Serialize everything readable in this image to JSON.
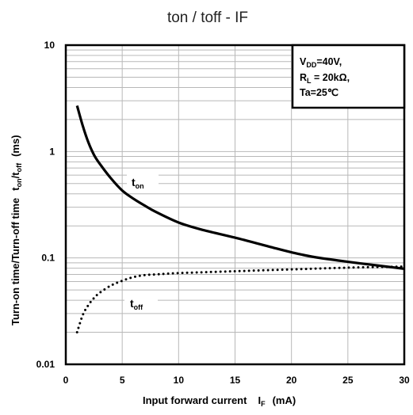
{
  "chart_data": {
    "type": "line",
    "title": "ton / toff - IF",
    "xlabel": {
      "main": "Input forward current",
      "symbol": "I",
      "symbol_sub": "F",
      "unit": "(mA)"
    },
    "ylabel": {
      "main": "Turn-on time/Turn-off time",
      "t1": "t",
      "t1_sub": "on",
      "slash": "/",
      "t2": "t",
      "t2_sub": "off",
      "unit": "(ms)"
    },
    "xlim": [
      0,
      30
    ],
    "ylim": [
      0.01,
      10
    ],
    "yscale": "log",
    "grid": true,
    "x_ticks": [
      0,
      5,
      10,
      15,
      20,
      25,
      30
    ],
    "x_tick_labels": [
      "0",
      "5",
      "10",
      "15",
      "20",
      "25",
      "30"
    ],
    "y_ticks": [
      0.01,
      0.1,
      1,
      10
    ],
    "y_tick_labels": [
      "0.01",
      "0.1",
      "1",
      "10"
    ],
    "series": [
      {
        "name": "t",
        "name_sub": "on",
        "style": "solid",
        "color": "#000000",
        "x": [
          1,
          1.5,
          2,
          2.5,
          3,
          4,
          5,
          6,
          7,
          8,
          10,
          12,
          15,
          18,
          20,
          22,
          25,
          28,
          30
        ],
        "y": [
          2.7,
          1.75,
          1.22,
          0.93,
          0.77,
          0.56,
          0.43,
          0.36,
          0.31,
          0.27,
          0.215,
          0.185,
          0.155,
          0.128,
          0.113,
          0.102,
          0.092,
          0.084,
          0.079
        ]
      },
      {
        "name": "t",
        "name_sub": "off",
        "style": "dotted",
        "color": "#000000",
        "x": [
          1,
          1.5,
          2,
          2.5,
          3,
          4,
          5,
          6,
          7,
          8,
          10,
          15,
          20,
          25,
          30
        ],
        "y": [
          0.02,
          0.029,
          0.036,
          0.042,
          0.047,
          0.055,
          0.061,
          0.066,
          0.069,
          0.07,
          0.072,
          0.075,
          0.078,
          0.081,
          0.083
        ]
      }
    ],
    "annotation": {
      "lines": [
        {
          "main": "V",
          "sub": "DD",
          "rest": "=40V,"
        },
        {
          "main": "R",
          "sub": "L",
          "rest": " = 20kΩ,"
        },
        {
          "main": "Ta=25℃",
          "sub": "",
          "rest": ""
        }
      ],
      "placement": "top-right"
    }
  }
}
